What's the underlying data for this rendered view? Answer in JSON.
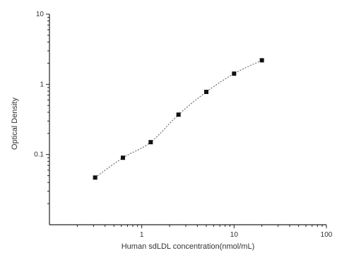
{
  "chart_data": {
    "type": "scatter",
    "title": "",
    "xlabel": "Human sdLDL concentration(nmol/mL)",
    "ylabel": "Optical Density",
    "x_scale": "log",
    "y_scale": "log",
    "xlim": [
      0.1,
      100
    ],
    "ylim": [
      0.01,
      10
    ],
    "x_ticks": [
      {
        "value": 1,
        "label": "1"
      },
      {
        "value": 10,
        "label": "10"
      },
      {
        "value": 100,
        "label": "100"
      }
    ],
    "y_ticks": [
      {
        "value": 0.1,
        "label": "0.1"
      },
      {
        "value": 1,
        "label": "1"
      },
      {
        "value": 10,
        "label": "10"
      }
    ],
    "grid": false,
    "legend": false,
    "series": [
      {
        "x": [
          0.3125,
          0.625,
          1.25,
          2.5,
          5,
          10,
          20
        ],
        "y": [
          0.047,
          0.09,
          0.15,
          0.37,
          0.78,
          1.42,
          2.2
        ]
      }
    ],
    "fit_curve": true
  }
}
